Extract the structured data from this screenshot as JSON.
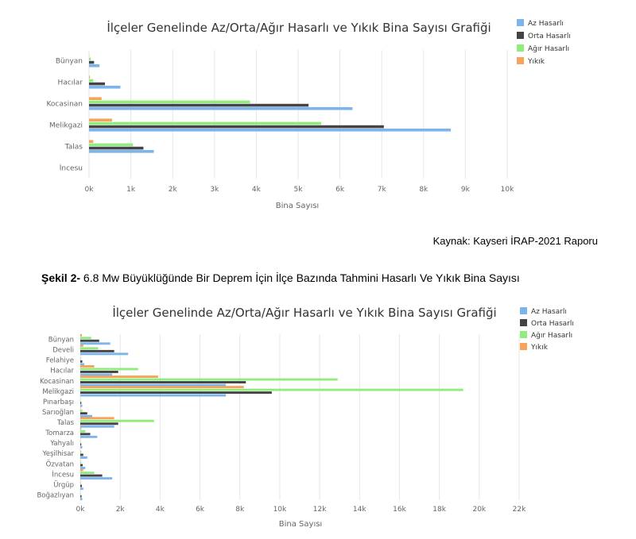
{
  "colors": {
    "az": "#7cb5ec",
    "orta": "#434348",
    "agir": "#90ed7d",
    "yikik": "#f7a35c",
    "grid": "#e6e6e6",
    "axis_text": "#666666",
    "title": "#333333"
  },
  "source_text": "Kaynak: Kayseri İRAP-2021 Raporu",
  "caption": {
    "label": "Şekil 2-",
    "text": " 6.8 Mw Büyüklüğünde  Bir Deprem  İçin İlçe Bazında Tahmini Hasarlı Ve Yıkık Bina Sayısı"
  },
  "chart_data": [
    {
      "type": "bar",
      "orientation": "horizontal",
      "title": "İlçeler Genelinde Az/Orta/Ağır Hasarlı ve Yıkık Bina Sayısı Grafiği",
      "xlabel": "Bina Sayısı",
      "ylabel": "",
      "xlim": [
        0,
        10000
      ],
      "xticks": [
        "0k",
        "1k",
        "2k",
        "3k",
        "4k",
        "5k",
        "6k",
        "7k",
        "8k",
        "9k",
        "10k"
      ],
      "grid": true,
      "legend": "top-right",
      "categories": [
        "Bünyan",
        "Hacılar",
        "Kocasinan",
        "Melikgazi",
        "Talas",
        "İncesu"
      ],
      "series": [
        {
          "name": "Az Hasarlı",
          "values": [
            250,
            750,
            6300,
            8650,
            1550,
            0
          ]
        },
        {
          "name": "Orta Hasarlı",
          "values": [
            120,
            380,
            5250,
            7050,
            1300,
            0
          ]
        },
        {
          "name": "Ağır Hasarlı",
          "values": [
            40,
            100,
            3850,
            5550,
            1050,
            0
          ]
        },
        {
          "name": "Yıkık",
          "values": [
            5,
            20,
            300,
            550,
            100,
            0
          ]
        }
      ]
    },
    {
      "type": "bar",
      "orientation": "horizontal",
      "title": "İlçeler Genelinde Az/Orta/Ağır Hasarlı ve Yıkık Bina Sayısı Grafiği",
      "xlabel": "Bina Sayısı",
      "ylabel": "",
      "xlim": [
        0,
        22000
      ],
      "xticks": [
        "0k",
        "2k",
        "4k",
        "6k",
        "8k",
        "10k",
        "12k",
        "14k",
        "16k",
        "18k",
        "20k",
        "22k"
      ],
      "grid": true,
      "legend": "top-right",
      "categories": [
        "Bünyan",
        "Develi",
        "Felahiye",
        "Hacılar",
        "Kocasinan",
        "Melikgazi",
        "Pınarbaşı",
        "Sarıoğlan",
        "Talas",
        "Tomarza",
        "Yahyalı",
        "Yeşilhisar",
        "Özvatan",
        "İncesu",
        "Ürgüp",
        "Boğazlıyan"
      ],
      "series": [
        {
          "name": "Az Hasarlı",
          "values": [
            1500,
            2400,
            200,
            1600,
            7300,
            7300,
            100,
            600,
            1700,
            850,
            100,
            350,
            250,
            1600,
            150,
            100
          ]
        },
        {
          "name": "Orta Hasarlı",
          "values": [
            950,
            1700,
            100,
            1900,
            8300,
            9600,
            50,
            350,
            1900,
            500,
            50,
            150,
            120,
            1100,
            80,
            60
          ]
        },
        {
          "name": "Ağır Hasarlı",
          "values": [
            550,
            900,
            30,
            2900,
            12900,
            19200,
            20,
            100,
            3700,
            250,
            20,
            50,
            40,
            700,
            30,
            20
          ]
        },
        {
          "name": "Yıkık",
          "values": [
            80,
            150,
            5,
            700,
            3900,
            8200,
            5,
            20,
            1700,
            50,
            5,
            10,
            10,
            150,
            10,
            5
          ]
        }
      ]
    }
  ]
}
